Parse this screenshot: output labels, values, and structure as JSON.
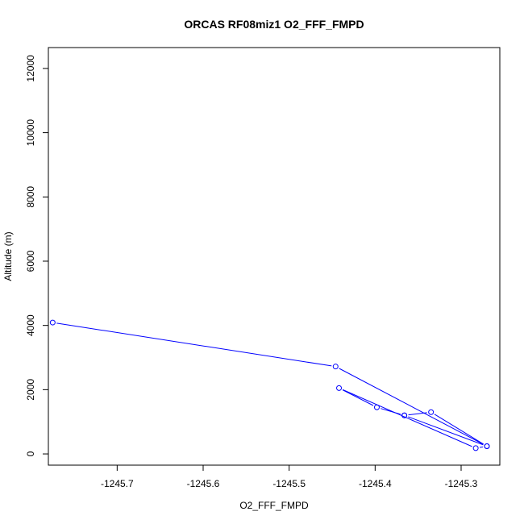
{
  "chart_data": {
    "type": "line",
    "title": "ORCAS RF08miz1 O2_FFF_FMPD",
    "xlabel": "O2_FFF_FMPD",
    "ylabel": "Altitude (m)",
    "xlim": [
      -1245.78,
      -1245.255
    ],
    "ylim": [
      -350,
      12650
    ],
    "xticks": [
      -1245.7,
      -1245.6,
      -1245.5,
      -1245.4,
      -1245.3
    ],
    "xtick_labels": [
      "-1245.7",
      "-1245.6",
      "-1245.5",
      "-1245.4",
      "-1245.3"
    ],
    "yticks": [
      0,
      2000,
      4000,
      6000,
      8000,
      10000,
      12000
    ],
    "ytick_labels": [
      "0",
      "2000",
      "4000",
      "6000",
      "8000",
      "10000",
      "12000"
    ],
    "grid": false,
    "series": [
      {
        "color": "#0000ff",
        "marker": "open-circle",
        "x": [
          -1245.775,
          -1245.446,
          -1245.27,
          -1245.366,
          -1245.398,
          -1245.442,
          -1245.283,
          -1245.27,
          -1245.335,
          -1245.366
        ],
        "y": [
          4090,
          2720,
          240,
          1200,
          1450,
          2050,
          180,
          240,
          1300,
          1200
        ]
      }
    ]
  }
}
